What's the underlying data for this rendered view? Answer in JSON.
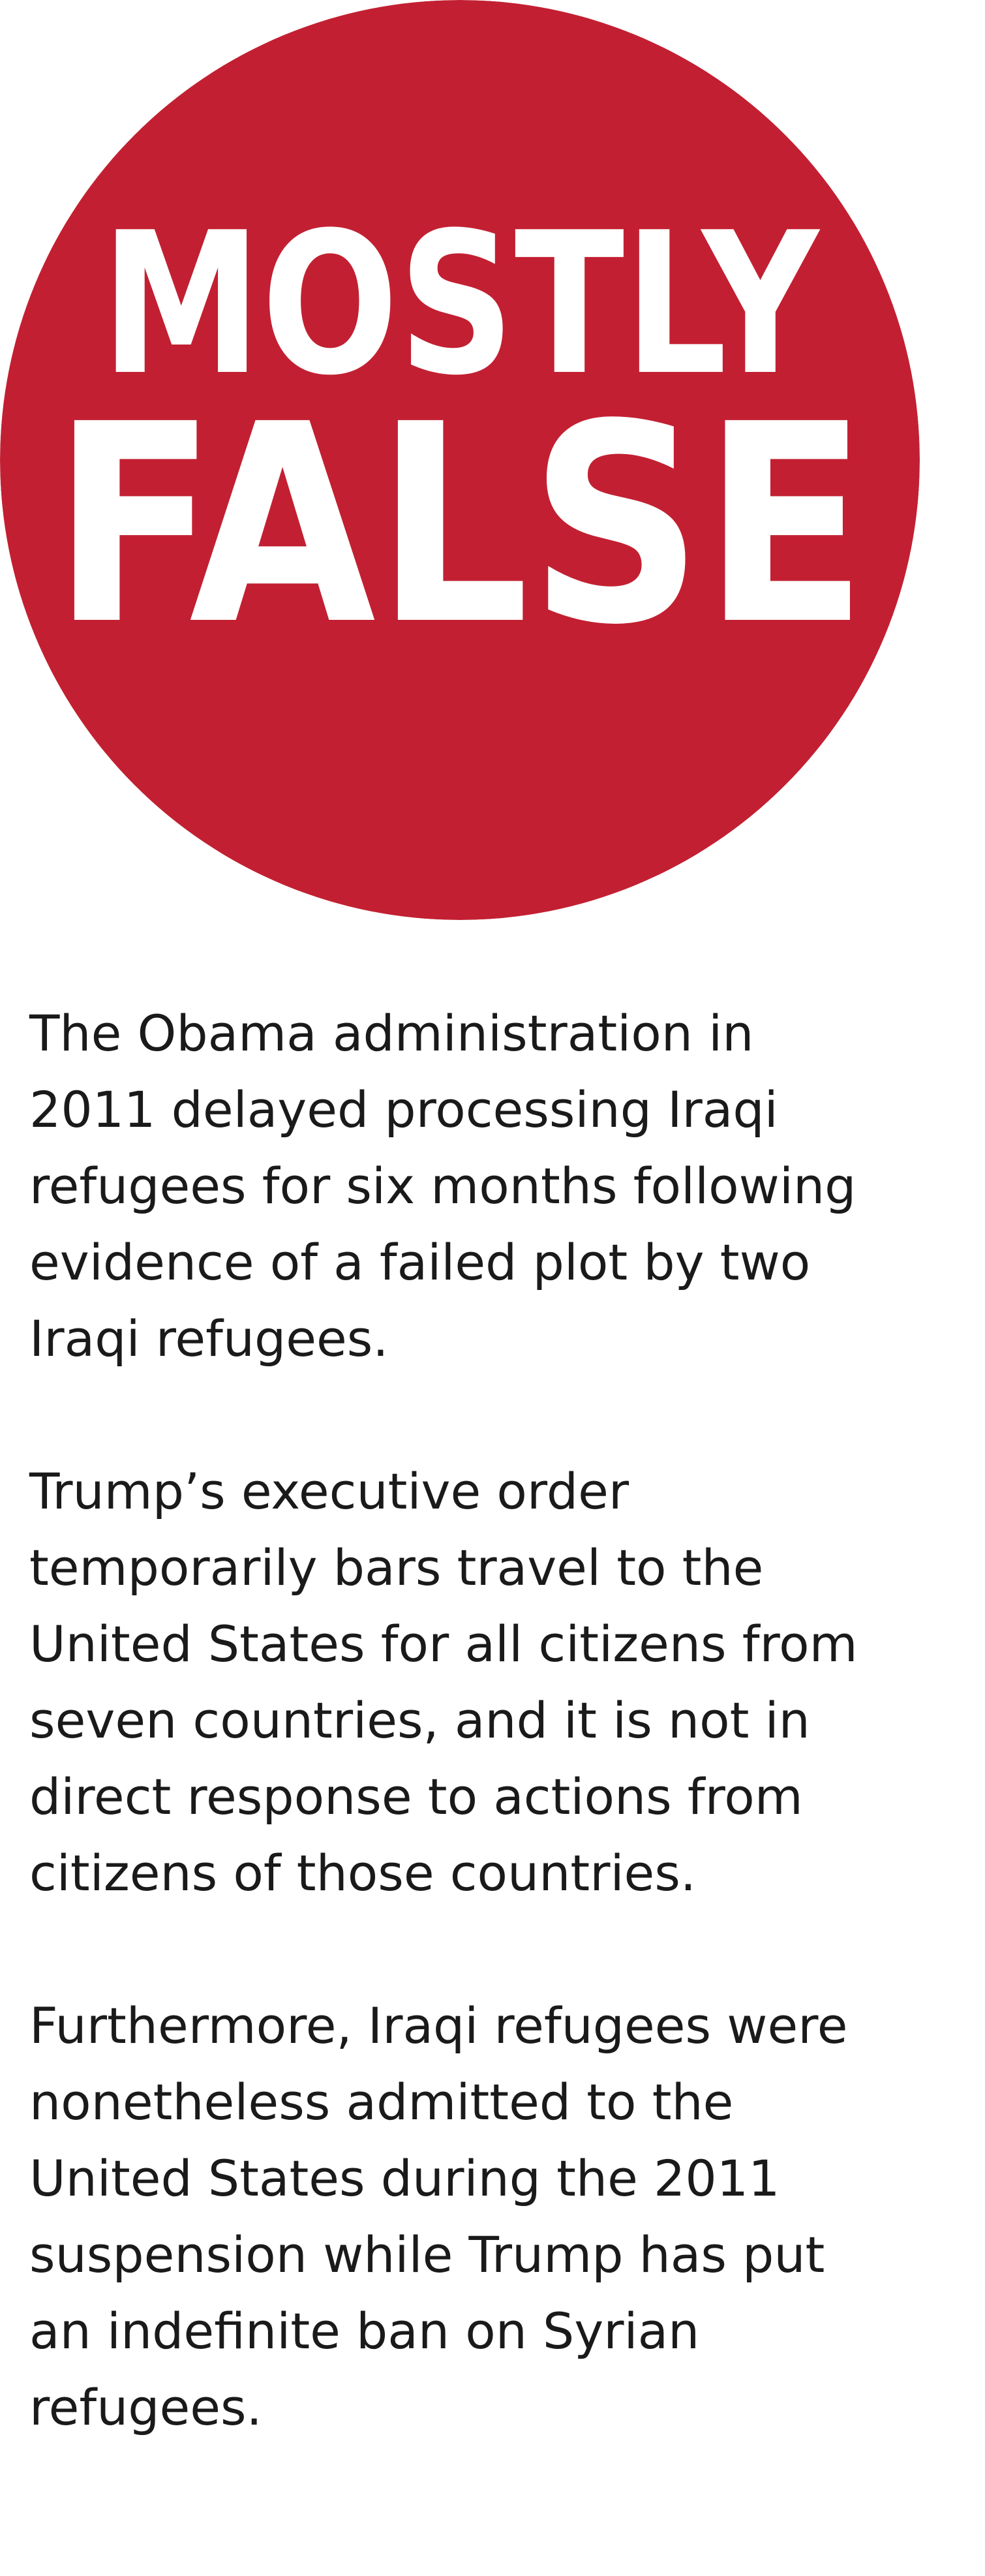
{
  "ruling": {
    "word_1": "MOSTLY",
    "word_2": "FALSE",
    "badge_color": "#c22032",
    "text_color": "#ffffff"
  },
  "paragraphs": [
    {
      "lines": [
        "The Obama administration in",
        "2011 delayed processing Iraqi",
        "refugees for six months following",
        "evidence of a failed plot by two",
        "Iraqi refugees."
      ]
    },
    {
      "lines": [
        "Trump’s executive order",
        "temporarily bars travel to the",
        "United States for all citizens from",
        "seven countries, and it is not in",
        "direct response to actions from",
        "citizens of those countries."
      ]
    },
    {
      "lines": [
        "Furthermore, Iraqi refugees were",
        "nonetheless admitted to the",
        "United States during the 2011",
        "suspension while Trump has put",
        "an indefinite ban on Syrian",
        "refugees."
      ]
    }
  ]
}
